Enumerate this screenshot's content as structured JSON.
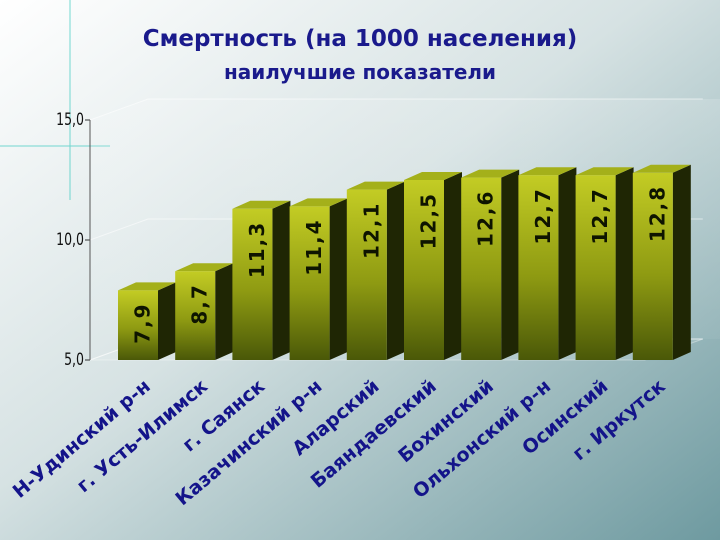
{
  "colors": {
    "background_top": "#ffffff",
    "background_bottom": "#6e9aa0",
    "title": "#1a1a8c",
    "bar_front_light": "#c3cc24",
    "bar_front_dark": "#4a5808",
    "axis_text": "#111111",
    "decor_line": "#3ccac0"
  },
  "chart_data": {
    "type": "bar",
    "title": "Смертность (на 1000 населения)",
    "subtitle": "наилучшие показатели",
    "categories": [
      "Н-Удинский р-н",
      "г. Усть-Илимск",
      "г. Саянск",
      "Казачинский р-н",
      "Аларский",
      "Баяндаевский",
      "Бохинский",
      "Ольхонский р-н",
      "Осинский",
      "г. Иркутск"
    ],
    "values": [
      7.9,
      8.7,
      11.3,
      11.4,
      12.1,
      12.5,
      12.6,
      12.7,
      12.7,
      12.8
    ],
    "data_labels": [
      "7,9",
      "8,7",
      "11,3",
      "11,4",
      "12,1",
      "12,5",
      "12,6",
      "12,7",
      "12,7",
      "12,8"
    ],
    "yticks": [
      {
        "value": 5,
        "label": "5,0"
      },
      {
        "value": 10,
        "label": "10,0"
      },
      {
        "value": 15,
        "label": "15,0"
      }
    ],
    "ylim": [
      5,
      15
    ],
    "xlabel": "",
    "ylabel": "",
    "grid": true,
    "legend": "none"
  }
}
